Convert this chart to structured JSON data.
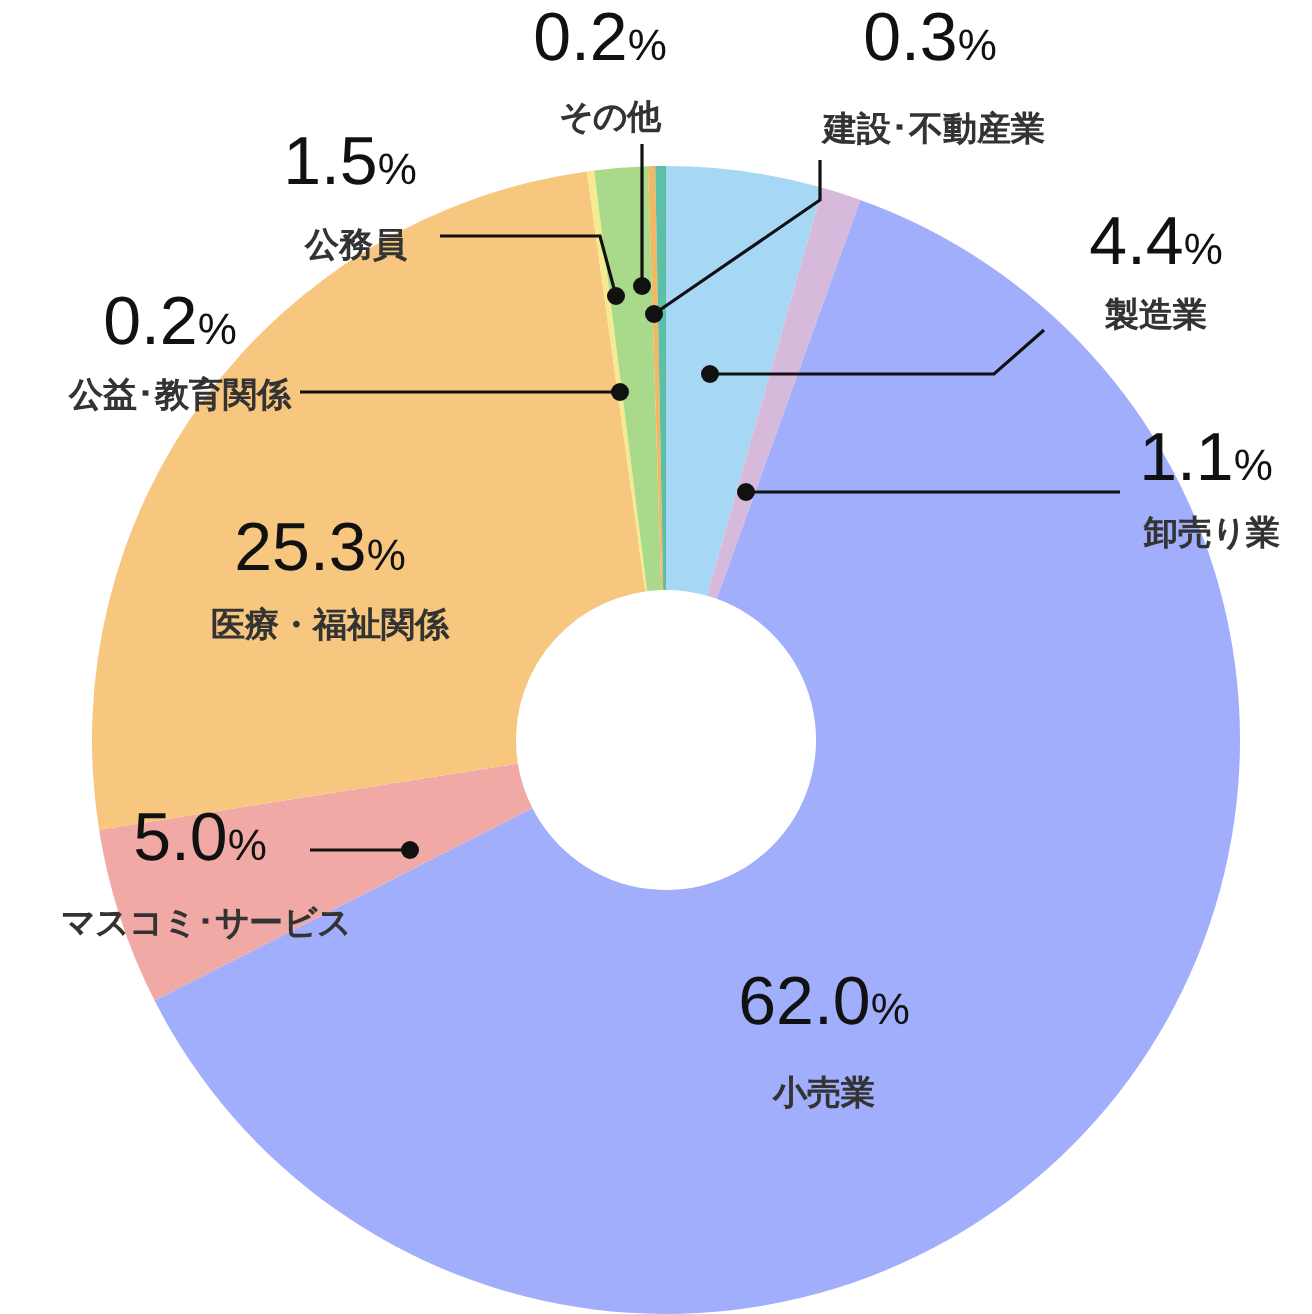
{
  "chart_data": {
    "type": "donut",
    "categories": [
      "製造業",
      "卸売り業",
      "小売業",
      "マスコミ･サービス",
      "医療・福祉関係",
      "公益･教育関係",
      "公務員",
      "その他",
      "建設･不動産業"
    ],
    "values": [
      4.4,
      1.1,
      62.0,
      5.0,
      25.3,
      0.2,
      1.5,
      0.2,
      0.3
    ],
    "colors": [
      "#a6d8f5",
      "#d7b9dc",
      "#a0aefc",
      "#f0a9a5",
      "#f7c77f",
      "#f5ea8f",
      "#a9d98a",
      "#f2b863",
      "#5dbfa5"
    ],
    "value_labels": [
      "4.4%",
      "1.1%",
      "62.0%",
      "5.0%",
      "25.3%",
      "0.2%",
      "1.5%",
      "0.2%",
      "0.3%"
    ]
  }
}
